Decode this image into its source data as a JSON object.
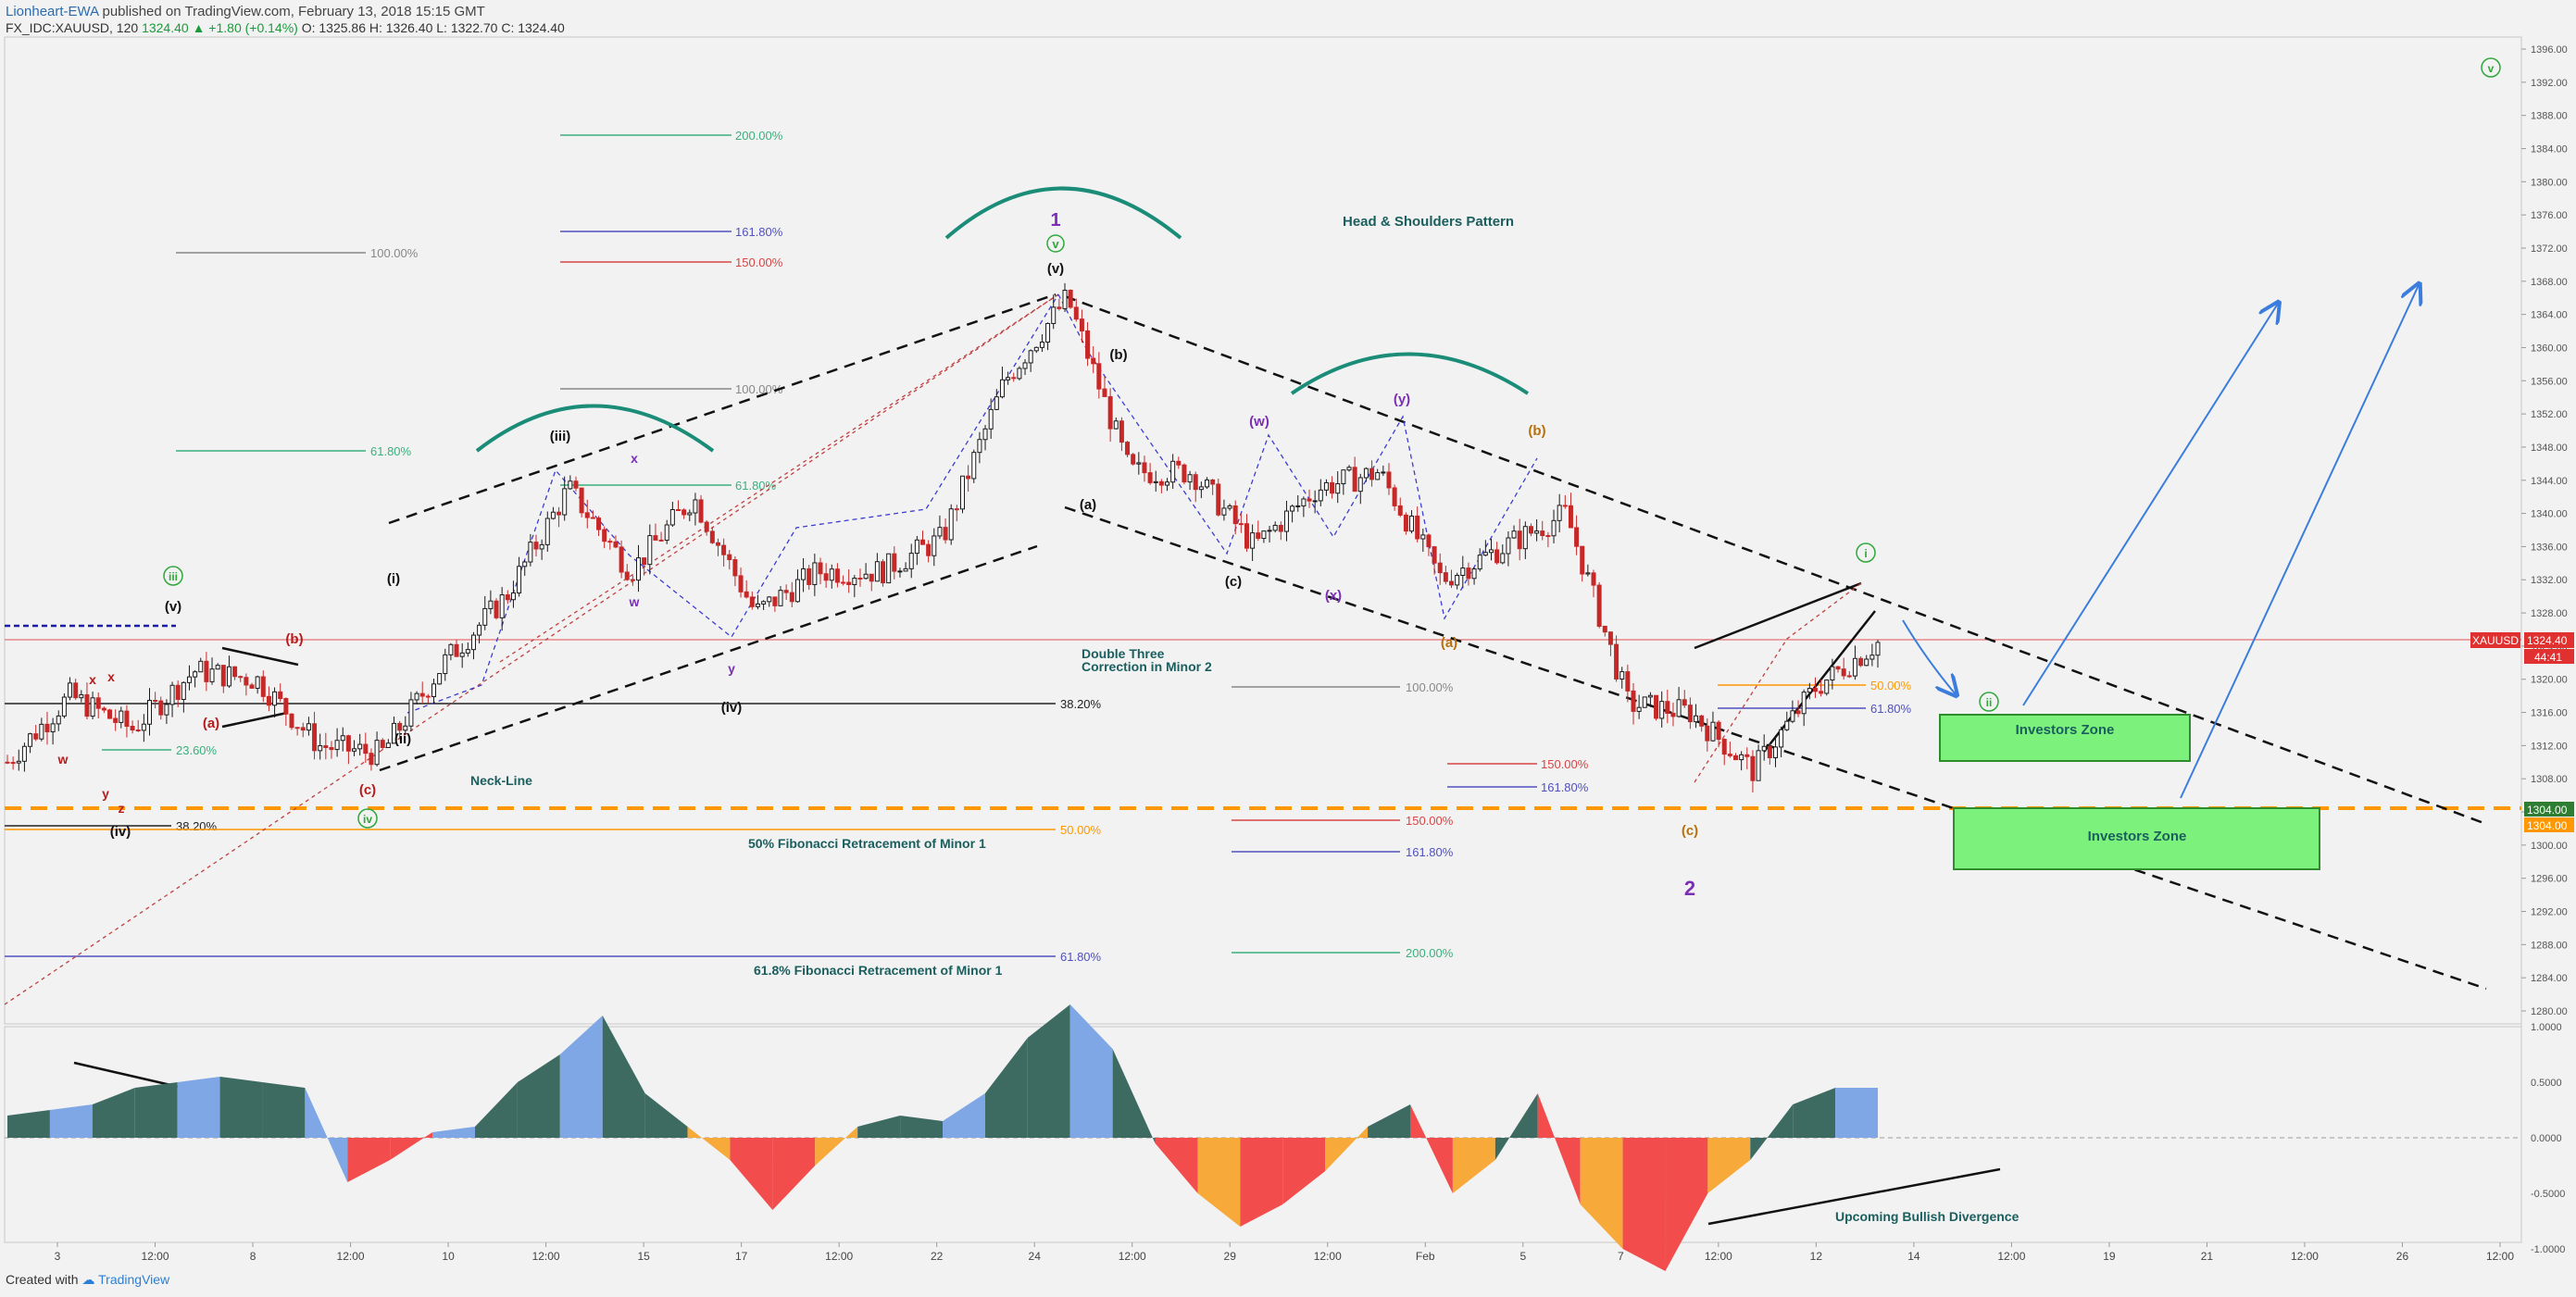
{
  "header": {
    "author": "Lionheart-EWA",
    "published": "published on TradingView.com, February 13, 2018 15:15 GMT",
    "symbol_line": "FX_IDC:XAUUSD, 120",
    "last": "1324.40",
    "change": "▲ +1.80 (+0.14%)",
    "ohlc": "O: 1325.86  H: 1326.40  L: 1322.70  C: 1324.40"
  },
  "footer": {
    "created_with": "Created with",
    "brand": "TradingView"
  },
  "colors": {
    "up": "#1a1a1a",
    "down": "#c62828",
    "green_zone": "#7cf27c",
    "orange": "#ff9800",
    "teal": "#1a8c78",
    "fib_green": "#3ab07e",
    "fib_red": "#d84444",
    "fib_blue": "#5050c0",
    "osc_dark": "#3d6b62",
    "osc_blue": "#7fa7e6",
    "osc_red": "#f24c4c",
    "osc_orange": "#f7a93a"
  },
  "price_axis": {
    "ticks": [
      "1396.00",
      "1392.00",
      "1388.00",
      "1384.00",
      "1380.00",
      "1376.00",
      "1372.00",
      "1368.00",
      "1364.00",
      "1360.00",
      "1356.00",
      "1352.00",
      "1348.00",
      "1344.00",
      "1340.00",
      "1336.00",
      "1332.00",
      "1328.00",
      "1324.00",
      "1320.00",
      "1316.00",
      "1312.00",
      "1308.00",
      "1304.00",
      "1300.00",
      "1296.00",
      "1292.00",
      "1288.00",
      "1284.00",
      "1280.00"
    ],
    "last_badge": "1324.40",
    "symbol_badge": "XAUUSD",
    "countdown": "44:41",
    "level_badge_a": "1304.00",
    "level_badge_b": "1304.00"
  },
  "osc_axis": {
    "ticks": [
      "1.0000",
      "0.5000",
      "0.0000",
      "-0.5000",
      "-1.0000"
    ]
  },
  "time_axis": {
    "labels": [
      "3",
      "12:00",
      "8",
      "12:00",
      "10",
      "12:00",
      "15",
      "17",
      "12:00",
      "22",
      "24",
      "12:00",
      "29",
      "12:00",
      "Feb",
      "5",
      "7",
      "12:00",
      "12",
      "14",
      "12:00",
      "19",
      "21",
      "12:00",
      "26",
      "12:00"
    ]
  },
  "annotations": {
    "wave_top_1": "1",
    "wave_v_circ": "v",
    "wave_v": "(v)",
    "hs_pattern": "Head & Shoulders Pattern",
    "neck_line": "Neck-Line",
    "double_three_1": "Double Three",
    "double_three_2": "Correction in Minor 2",
    "fib50_label": "50% Fibonacci Retracement of Minor 1",
    "fib618_label": "61.8% Fibonacci Retracement of Minor 1",
    "investors_zone_1": "Investors Zone",
    "investors_zone_2": "Investors Zone",
    "bullish_div": "Upcoming Bullish Divergence",
    "w_iii_circ": "iii",
    "w_iv_circ": "iv",
    "w_v_circ": "v",
    "w_ii_circ": "ii",
    "w_i_circ": "i",
    "w_iii": "(iii)",
    "w_iv": "(iv)",
    "w_i": "(i)",
    "w_ii": "(ii)",
    "w_v_left": "(v)",
    "w_a": "(a)",
    "w_b": "(b)",
    "w_c": "(c)",
    "w_x": "(x)",
    "w_y": "(y)",
    "w_w": "(w)",
    "w_minor2": "2",
    "w_x_small": "x",
    "w_w_small": "w",
    "w_y_small": "y",
    "w_z_small": "z"
  },
  "fib_labels": {
    "f200a": "200.00%",
    "f1618a": "161.80%",
    "f150a": "150.00%",
    "f100a": "100.00%",
    "f618a": "61.80%",
    "f100b": "100.00%",
    "f618b": "61.80%",
    "f382a": "38.20%",
    "f382b": "38.20%",
    "f50a": "50.00%",
    "f618c": "61.80%",
    "f100c": "100.00%",
    "f150b": "150.00%",
    "f1618b": "161.80%",
    "f150c": "150.00%",
    "f1618c": "161.80%",
    "f200b": "200.00%",
    "f50b": "50.00%",
    "f618d": "61.80%",
    "f2360": "23.60%"
  },
  "chart_data": {
    "type": "candlestick",
    "symbol": "FX_IDC:XAUUSD",
    "timeframe": "120",
    "ylim": [
      1280,
      1396
    ],
    "last_price": 1324.4,
    "key_levels": [
      {
        "value": 1304.0,
        "label": "50% Fibonacci Retracement of Minor 1"
      },
      {
        "value": 1286.0,
        "label": "61.8% Fibonacci Retracement of Minor 1"
      },
      {
        "value": 1318.0,
        "label": "38.20%"
      }
    ],
    "price_path": [
      {
        "x": "Jan 2",
        "y": 1310
      },
      {
        "x": "Jan 3",
        "y": 1318
      },
      {
        "x": "Jan 4",
        "y": 1314
      },
      {
        "x": "Jan 5",
        "y": 1321
      },
      {
        "x": "Jan 8",
        "y": 1320
      },
      {
        "x": "Jan 9",
        "y": 1312
      },
      {
        "x": "Jan 10",
        "y": 1311
      },
      {
        "x": "Jan 11",
        "y": 1322
      },
      {
        "x": "Jan 12",
        "y": 1330
      },
      {
        "x": "Jan 15",
        "y": 1343
      },
      {
        "x": "Jan 16",
        "y": 1333
      },
      {
        "x": "Jan 17",
        "y": 1342
      },
      {
        "x": "Jan 18",
        "y": 1328
      },
      {
        "x": "Jan 19",
        "y": 1333
      },
      {
        "x": "Jan 22",
        "y": 1333
      },
      {
        "x": "Jan 23",
        "y": 1337
      },
      {
        "x": "Jan 24",
        "y": 1356
      },
      {
        "x": "Jan 25",
        "y": 1366
      },
      {
        "x": "Jan 26",
        "y": 1345
      },
      {
        "x": "Jan 29",
        "y": 1345
      },
      {
        "x": "Jan 30",
        "y": 1336
      },
      {
        "x": "Jan 31",
        "y": 1343
      },
      {
        "x": "Feb 1",
        "y": 1345
      },
      {
        "x": "Feb 2",
        "y": 1332
      },
      {
        "x": "Feb 5",
        "y": 1336
      },
      {
        "x": "Feb 6",
        "y": 1340
      },
      {
        "x": "Feb 7",
        "y": 1317
      },
      {
        "x": "Feb 8",
        "y": 1316
      },
      {
        "x": "Feb 9",
        "y": 1309
      },
      {
        "x": "Feb 12",
        "y": 1319
      },
      {
        "x": "Feb 13",
        "y": 1324.4
      }
    ],
    "oscillator": {
      "ylim": [
        -1.25,
        1.25
      ],
      "points": [
        0.2,
        0.25,
        0.3,
        0.45,
        0.5,
        0.55,
        0.5,
        0.45,
        -0.4,
        -0.2,
        0.05,
        0.1,
        0.5,
        0.75,
        1.1,
        0.4,
        0.1,
        -0.2,
        -0.65,
        -0.25,
        0.1,
        0.2,
        0.15,
        0.4,
        0.9,
        1.2,
        0.8,
        -0.05,
        -0.5,
        -0.8,
        -0.6,
        -0.3,
        0.1,
        0.3,
        -0.5,
        -0.2,
        0.4,
        -0.6,
        -1.0,
        -1.2,
        -0.5,
        -0.2,
        0.3,
        0.45,
        0.45
      ]
    }
  }
}
